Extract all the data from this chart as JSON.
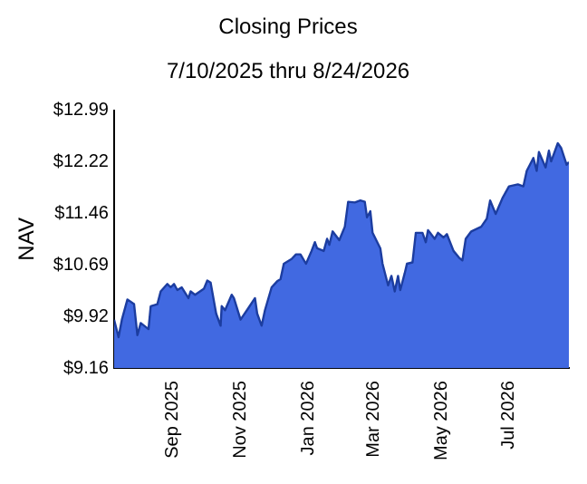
{
  "chart_data": {
    "type": "area",
    "title": "Closing Prices",
    "subtitle": "7/10/2025 thru 8/24/2026",
    "ylabel": "NAV",
    "x": [
      "2025-07-10",
      "2025-07-14",
      "2025-07-17",
      "2025-07-22",
      "2025-07-28",
      "2025-07-31",
      "2025-08-03",
      "2025-08-10",
      "2025-08-12",
      "2025-08-18",
      "2025-08-21",
      "2025-08-27",
      "2025-08-30",
      "2025-09-02",
      "2025-09-05",
      "2025-09-09",
      "2025-09-15",
      "2025-09-17",
      "2025-09-21",
      "2025-09-29",
      "2025-10-02",
      "2025-10-05",
      "2025-10-10",
      "2025-10-14",
      "2025-10-15",
      "2025-10-18",
      "2025-10-24",
      "2025-10-26",
      "2025-11-01",
      "2025-11-08",
      "2025-11-14",
      "2025-11-16",
      "2025-11-20",
      "2025-11-23",
      "2025-11-29",
      "2025-12-04",
      "2025-12-07",
      "2025-12-10",
      "2025-12-17",
      "2025-12-21",
      "2025-12-25",
      "2025-12-30",
      "2026-01-04",
      "2026-01-07",
      "2026-01-09",
      "2026-01-15",
      "2026-01-18",
      "2026-01-20",
      "2026-01-23",
      "2026-01-29",
      "2026-02-03",
      "2026-02-06",
      "2026-02-12",
      "2026-02-17",
      "2026-02-21",
      "2026-02-23",
      "2026-02-26",
      "2026-02-28",
      "2026-03-07",
      "2026-03-09",
      "2026-03-14",
      "2026-03-17",
      "2026-03-20",
      "2026-03-23",
      "2026-03-25",
      "2026-03-29",
      "2026-03-31",
      "2026-04-05",
      "2026-04-08",
      "2026-04-14",
      "2026-04-17",
      "2026-04-19",
      "2026-04-25",
      "2026-04-28",
      "2026-05-03",
      "2026-05-06",
      "2026-05-12",
      "2026-05-17",
      "2026-05-20",
      "2026-05-23",
      "2026-05-28",
      "2026-06-06",
      "2026-06-11",
      "2026-06-14",
      "2026-06-19",
      "2026-06-25",
      "2026-07-01",
      "2026-07-09",
      "2026-07-14",
      "2026-07-17",
      "2026-07-23",
      "2026-07-26",
      "2026-07-28",
      "2026-08-03",
      "2026-08-06",
      "2026-08-08",
      "2026-08-14",
      "2026-08-17",
      "2026-08-22",
      "2026-08-24"
    ],
    "series": [
      {
        "color": "#4169e1",
        "values": [
          9.88,
          9.62,
          9.88,
          10.18,
          10.11,
          9.65,
          9.83,
          9.74,
          10.08,
          10.11,
          10.3,
          10.41,
          10.36,
          10.41,
          10.32,
          10.36,
          10.2,
          10.3,
          10.25,
          10.34,
          10.46,
          10.43,
          9.97,
          9.79,
          10.08,
          10.02,
          10.25,
          10.2,
          9.88,
          10.05,
          10.2,
          9.97,
          9.79,
          10.02,
          10.36,
          10.45,
          10.48,
          10.71,
          10.78,
          10.85,
          10.85,
          10.71,
          10.9,
          11.03,
          10.94,
          10.9,
          11.08,
          10.99,
          11.19,
          11.06,
          11.26,
          11.63,
          11.62,
          11.65,
          11.63,
          11.4,
          11.49,
          11.17,
          10.94,
          10.71,
          10.39,
          10.53,
          10.3,
          10.53,
          10.32,
          10.57,
          10.71,
          10.73,
          11.17,
          11.17,
          11.03,
          11.21,
          11.08,
          11.17,
          11.1,
          11.15,
          10.9,
          10.8,
          10.76,
          11.08,
          11.19,
          11.26,
          11.38,
          11.65,
          11.45,
          11.68,
          11.86,
          11.89,
          11.86,
          12.09,
          12.28,
          12.09,
          12.37,
          12.14,
          12.39,
          12.23,
          12.5,
          12.43,
          12.18,
          12.22
        ]
      }
    ],
    "xlim": [
      "2025-07-10",
      "2026-08-24"
    ],
    "xticks": [
      {
        "value": "2025-09-01",
        "label": "Sep 2025"
      },
      {
        "value": "2025-11-01",
        "label": "Nov 2025"
      },
      {
        "value": "2026-01-01",
        "label": "Jan 2026"
      },
      {
        "value": "2026-03-01",
        "label": "Mar 2026"
      },
      {
        "value": "2026-05-01",
        "label": "May 2026"
      },
      {
        "value": "2026-07-01",
        "label": "Jul 2026"
      }
    ],
    "ylim": [
      9.16,
      12.99
    ],
    "yticks": [
      {
        "value": 9.16,
        "label": "$9.16"
      },
      {
        "value": 9.92,
        "label": "$9.92"
      },
      {
        "value": 10.69,
        "label": "$10.69"
      },
      {
        "value": 11.46,
        "label": "$11.46"
      },
      {
        "value": 12.22,
        "label": "$12.22"
      },
      {
        "value": 12.99,
        "label": "$12.99"
      }
    ],
    "grid": false,
    "legend": false,
    "marker": "none",
    "line_style": "solid"
  }
}
